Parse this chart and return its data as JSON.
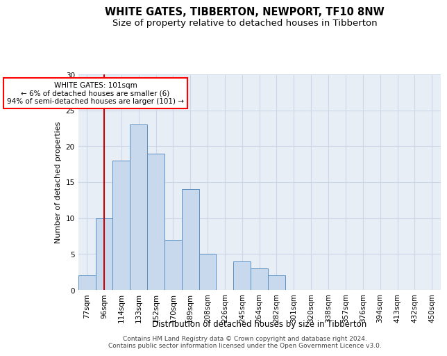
{
  "title": "WHITE GATES, TIBBERTON, NEWPORT, TF10 8NW",
  "subtitle": "Size of property relative to detached houses in Tibberton",
  "xlabel": "Distribution of detached houses by size in Tibberton",
  "ylabel": "Number of detached properties",
  "bar_labels": [
    "77sqm",
    "96sqm",
    "114sqm",
    "133sqm",
    "152sqm",
    "170sqm",
    "189sqm",
    "208sqm",
    "226sqm",
    "245sqm",
    "264sqm",
    "282sqm",
    "301sqm",
    "320sqm",
    "338sqm",
    "357sqm",
    "376sqm",
    "394sqm",
    "413sqm",
    "432sqm",
    "450sqm"
  ],
  "bar_values": [
    2,
    10,
    18,
    23,
    19,
    7,
    14,
    5,
    0,
    4,
    3,
    2,
    0,
    0,
    0,
    0,
    0,
    0,
    0,
    0,
    0
  ],
  "bar_color": "#c9d9ed",
  "bar_edge_color": "#5a8fc2",
  "ylim": [
    0,
    30
  ],
  "yticks": [
    0,
    5,
    10,
    15,
    20,
    25,
    30
  ],
  "red_line_x": 1.0,
  "annotation_text": "WHITE GATES: 101sqm\n← 6% of detached houses are smaller (6)\n94% of semi-detached houses are larger (101) →",
  "annotation_box_color": "white",
  "annotation_box_edge_color": "red",
  "red_line_color": "#cc0000",
  "grid_color": "#ccd8e8",
  "background_color": "#e8eef6",
  "footer_line1": "Contains HM Land Registry data © Crown copyright and database right 2024.",
  "footer_line2": "Contains public sector information licensed under the Open Government Licence v3.0.",
  "title_fontsize": 10.5,
  "subtitle_fontsize": 9.5,
  "xlabel_fontsize": 8.5,
  "ylabel_fontsize": 8,
  "tick_fontsize": 7.5,
  "footer_fontsize": 6.5,
  "annotation_fontsize": 7.5
}
